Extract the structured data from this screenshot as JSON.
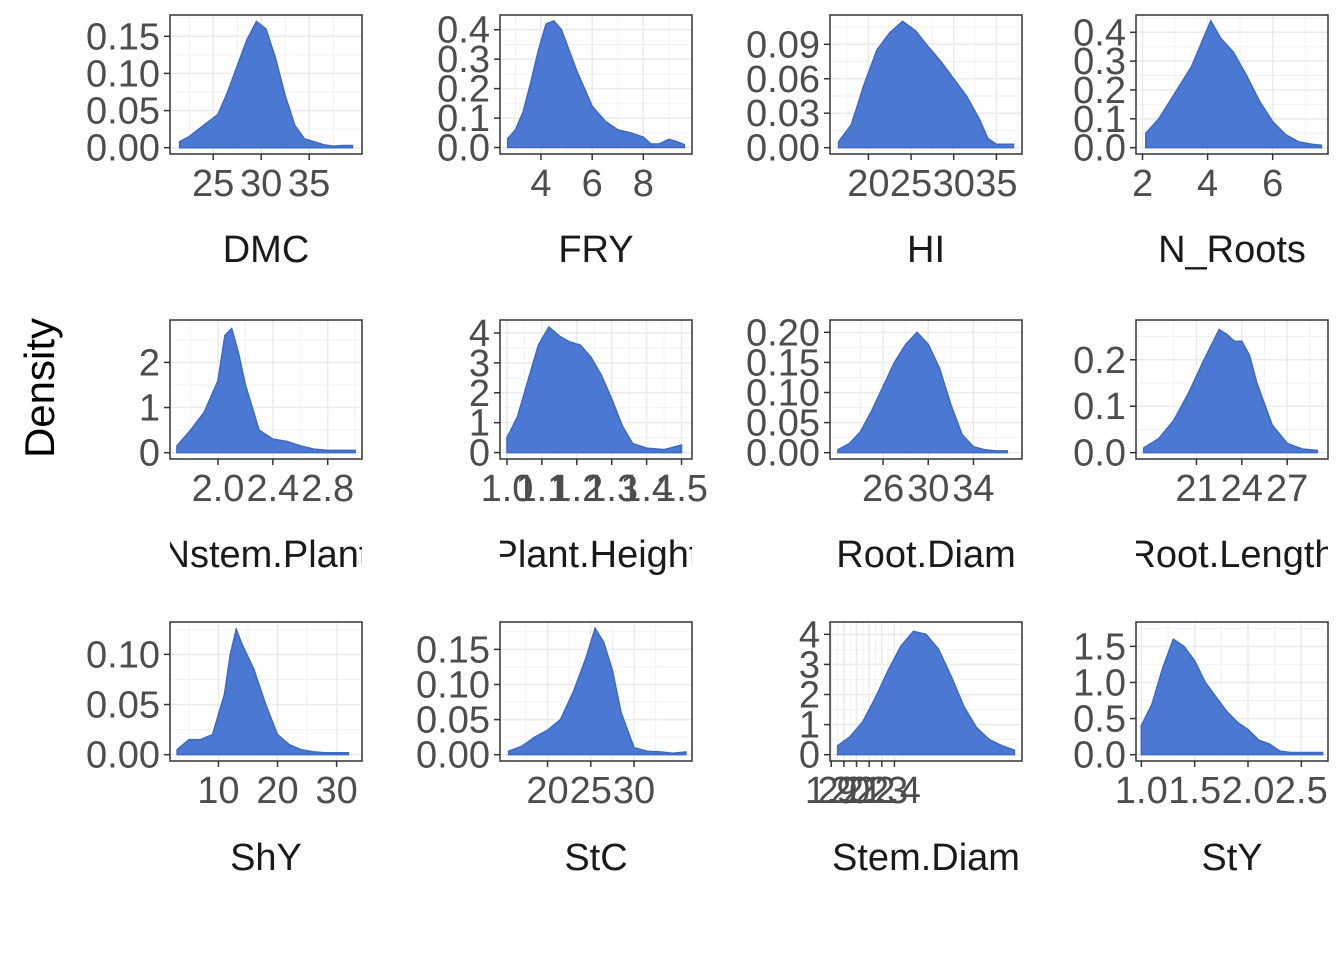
{
  "figure": {
    "ylabel": "Density"
  },
  "chart_data": [
    {
      "type": "area",
      "xlabel": "DMC",
      "xlim": [
        20.5,
        40.5
      ],
      "ylim": [
        -0.0085,
        0.1787
      ],
      "xticks": [
        25,
        30,
        35
      ],
      "xtick_labels": [
        "25",
        "30",
        "35"
      ],
      "yticks": [
        0,
        0.05,
        0.1,
        0.15
      ],
      "ytick_labels": [
        "0.00",
        "0.05",
        "0.10",
        "0.15"
      ],
      "fill_color": "#4a78d2",
      "grid": true,
      "x": [
        21.5,
        22.5,
        23.5,
        24.5,
        25.5,
        26.5,
        27.5,
        28.5,
        29.5,
        30.5,
        31.5,
        32.5,
        33.5,
        34.5,
        35.5,
        36.5,
        37.5,
        38.5,
        39.5
      ],
      "y": [
        0.008,
        0.015,
        0.025,
        0.035,
        0.045,
        0.075,
        0.11,
        0.145,
        0.17,
        0.16,
        0.12,
        0.07,
        0.03,
        0.012,
        0.008,
        0.004,
        0.002,
        0.003,
        0.003
      ]
    },
    {
      "type": "area",
      "xlabel": "FRY",
      "xlim": [
        2.4,
        9.9
      ],
      "ylim": [
        -0.022,
        0.45
      ],
      "xticks": [
        4,
        6,
        8
      ],
      "xtick_labels": [
        "4",
        "6",
        "8"
      ],
      "yticks": [
        0,
        0.1,
        0.2,
        0.3,
        0.4
      ],
      "ytick_labels": [
        "0.0",
        "0.1",
        "0.2",
        "0.3",
        "0.4"
      ],
      "fill_color": "#4a78d2",
      "grid": true,
      "x": [
        2.7,
        3.0,
        3.3,
        3.6,
        3.9,
        4.2,
        4.5,
        4.8,
        5.1,
        5.4,
        5.7,
        6.0,
        6.5,
        7.0,
        7.5,
        8.0,
        8.3,
        8.6,
        9.0,
        9.3,
        9.6
      ],
      "y": [
        0.03,
        0.06,
        0.12,
        0.22,
        0.33,
        0.42,
        0.43,
        0.4,
        0.33,
        0.26,
        0.2,
        0.14,
        0.09,
        0.06,
        0.05,
        0.035,
        0.012,
        0.012,
        0.028,
        0.02,
        0.01
      ]
    },
    {
      "type": "area",
      "xlabel": "HI",
      "xlim": [
        15.5,
        38.0
      ],
      "ylim": [
        -0.0055,
        0.1155
      ],
      "xticks": [
        20,
        25,
        30,
        35
      ],
      "xtick_labels": [
        "20",
        "25",
        "30",
        "35"
      ],
      "yticks": [
        0,
        0.03,
        0.06,
        0.09
      ],
      "ytick_labels": [
        "0.00",
        "0.03",
        "0.06",
        "0.09"
      ],
      "fill_color": "#4a78d2",
      "grid": true,
      "x": [
        16.5,
        18,
        19.5,
        21,
        22.5,
        24,
        25.5,
        27,
        28.5,
        30,
        31.5,
        33,
        34,
        35,
        36,
        37
      ],
      "y": [
        0.005,
        0.02,
        0.055,
        0.085,
        0.1,
        0.11,
        0.102,
        0.088,
        0.075,
        0.06,
        0.045,
        0.025,
        0.008,
        0.003,
        0.003,
        0.003
      ]
    },
    {
      "type": "area",
      "xlabel": "N_Roots",
      "xlim": [
        1.8,
        7.7
      ],
      "ylim": [
        -0.022,
        0.46
      ],
      "xticks": [
        2,
        4,
        6
      ],
      "xtick_labels": [
        "2",
        "4",
        "6"
      ],
      "yticks": [
        0,
        0.1,
        0.2,
        0.3,
        0.4
      ],
      "ytick_labels": [
        "0.0",
        "0.1",
        "0.2",
        "0.3",
        "0.4"
      ],
      "fill_color": "#4a78d2",
      "grid": true,
      "x": [
        2.1,
        2.5,
        3.0,
        3.5,
        3.8,
        4.1,
        4.4,
        4.8,
        5.2,
        5.6,
        6.0,
        6.4,
        6.8,
        7.2,
        7.5
      ],
      "y": [
        0.05,
        0.1,
        0.19,
        0.28,
        0.36,
        0.44,
        0.38,
        0.33,
        0.25,
        0.16,
        0.09,
        0.045,
        0.02,
        0.012,
        0.008
      ]
    },
    {
      "type": "area",
      "xlabel": "Nstem.Plant",
      "xlim": [
        1.65,
        3.05
      ],
      "ylim": [
        -0.14,
        2.94
      ],
      "xticks": [
        2.0,
        2.4,
        2.8
      ],
      "xtick_labels": [
        "2.0",
        "2.4",
        "2.8"
      ],
      "yticks": [
        0,
        1,
        2
      ],
      "ytick_labels": [
        "0",
        "1",
        "2"
      ],
      "fill_color": "#4a78d2",
      "grid": true,
      "x": [
        1.7,
        1.8,
        1.9,
        2.0,
        2.05,
        2.1,
        2.15,
        2.2,
        2.25,
        2.3,
        2.4,
        2.5,
        2.6,
        2.7,
        2.8,
        2.9,
        3.0
      ],
      "y": [
        0.15,
        0.5,
        0.9,
        1.6,
        2.6,
        2.75,
        2.2,
        1.5,
        1.0,
        0.5,
        0.3,
        0.25,
        0.15,
        0.08,
        0.05,
        0.05,
        0.05
      ]
    },
    {
      "type": "area",
      "xlabel": "Plant.Height",
      "xlim": [
        0.98,
        1.53
      ],
      "ylim": [
        -0.215,
        4.435
      ],
      "xticks": [
        1.0,
        1.1,
        1.2,
        1.3,
        1.4,
        1.5
      ],
      "xtick_labels": [
        "1.0",
        "1.1",
        "1.2",
        "1.3",
        "1.4",
        "1.5"
      ],
      "yticks": [
        0,
        1,
        2,
        3,
        4
      ],
      "ytick_labels": [
        "0",
        "1",
        "2",
        "3",
        "4"
      ],
      "fill_color": "#4a78d2",
      "grid": true,
      "x": [
        1.0,
        1.03,
        1.06,
        1.09,
        1.12,
        1.15,
        1.18,
        1.21,
        1.24,
        1.27,
        1.3,
        1.33,
        1.36,
        1.4,
        1.45,
        1.5
      ],
      "y": [
        0.5,
        1.2,
        2.4,
        3.6,
        4.2,
        3.9,
        3.7,
        3.6,
        3.2,
        2.6,
        1.8,
        0.9,
        0.3,
        0.15,
        0.1,
        0.25
      ]
    },
    {
      "type": "area",
      "xlabel": "Root.Diam",
      "xlim": [
        21.3,
        38.3
      ],
      "ylim": [
        -0.0105,
        0.2205
      ],
      "xticks": [
        26,
        30,
        34
      ],
      "xtick_labels": [
        "26",
        "30",
        "34"
      ],
      "yticks": [
        0,
        0.05,
        0.1,
        0.15,
        0.2
      ],
      "ytick_labels": [
        "0.00",
        "0.05",
        "0.10",
        "0.15",
        "0.20"
      ],
      "fill_color": "#4a78d2",
      "grid": true,
      "x": [
        22.0,
        23.0,
        24.0,
        25.0,
        26.0,
        27.0,
        28.0,
        29.0,
        30.0,
        31.0,
        32.0,
        33.0,
        34.0,
        35.0,
        36.0,
        37.0
      ],
      "y": [
        0.005,
        0.015,
        0.035,
        0.07,
        0.11,
        0.15,
        0.18,
        0.2,
        0.18,
        0.14,
        0.08,
        0.03,
        0.01,
        0.005,
        0.003,
        0.003
      ]
    },
    {
      "type": "area",
      "xlabel": "Root.Length",
      "xlim": [
        17.0,
        29.7
      ],
      "ylim": [
        -0.0136,
        0.2856
      ],
      "xticks": [
        21,
        24,
        27
      ],
      "xtick_labels": [
        "21",
        "24",
        "27"
      ],
      "yticks": [
        0,
        0.1,
        0.2
      ],
      "ytick_labels": [
        "0.0",
        "0.1",
        "0.2"
      ],
      "fill_color": "#4a78d2",
      "grid": true,
      "x": [
        17.5,
        18.5,
        19.5,
        20.5,
        21.5,
        22.5,
        23.0,
        23.5,
        24.0,
        24.5,
        25.0,
        26.0,
        27.0,
        28.0,
        29.0
      ],
      "y": [
        0.01,
        0.03,
        0.07,
        0.13,
        0.2,
        0.265,
        0.255,
        0.24,
        0.24,
        0.21,
        0.15,
        0.06,
        0.02,
        0.008,
        0.005
      ]
    },
    {
      "type": "area",
      "xlabel": "ShY",
      "xlim": [
        1.8,
        34.3
      ],
      "ylim": [
        -0.0063,
        0.1323
      ],
      "xticks": [
        10,
        20,
        30
      ],
      "xtick_labels": [
        "10",
        "20",
        "30"
      ],
      "yticks": [
        0,
        0.05,
        0.1
      ],
      "ytick_labels": [
        "0.00",
        "0.05",
        "0.10"
      ],
      "fill_color": "#4a78d2",
      "grid": true,
      "x": [
        3,
        5,
        7,
        9,
        11,
        12,
        13,
        14,
        16,
        18,
        20,
        22,
        24,
        26,
        28,
        30,
        32
      ],
      "y": [
        0.005,
        0.015,
        0.015,
        0.02,
        0.06,
        0.1,
        0.125,
        0.11,
        0.085,
        0.05,
        0.02,
        0.01,
        0.005,
        0.003,
        0.002,
        0.002,
        0.002
      ]
    },
    {
      "type": "area",
      "xlabel": "StC",
      "xlim": [
        14.5,
        36.7
      ],
      "ylim": [
        -0.009,
        0.189
      ],
      "xticks": [
        20,
        25,
        30
      ],
      "xtick_labels": [
        "20",
        "25",
        "30"
      ],
      "yticks": [
        0,
        0.05,
        0.1,
        0.15
      ],
      "ytick_labels": [
        "0.00",
        "0.05",
        "0.10",
        "0.15"
      ],
      "fill_color": "#4a78d2",
      "grid": true,
      "x": [
        15.5,
        17.0,
        18.5,
        20.0,
        21.5,
        23.0,
        24.5,
        25.5,
        26.5,
        27.5,
        28.5,
        30.0,
        31.5,
        33.0,
        34.5,
        36.0
      ],
      "y": [
        0.005,
        0.012,
        0.025,
        0.035,
        0.05,
        0.09,
        0.14,
        0.18,
        0.16,
        0.12,
        0.06,
        0.01,
        0.005,
        0.004,
        0.002,
        0.004
      ]
    },
    {
      "type": "area",
      "xlabel": "Stem.Diam",
      "xlim": [
        1.89,
        3.41
      ],
      "ylim": [
        -0.21,
        4.41
      ],
      "xticks": [
        1.9,
        2.0,
        2.1,
        2.2,
        2.3,
        2.4
      ],
      "xtick_labels": [
        "1.9",
        "2.0",
        "2.1",
        "2.2",
        "2.3",
        "2.4"
      ],
      "yticks": [
        0,
        1,
        2,
        3,
        4
      ],
      "ytick_labels": [
        "0",
        "1",
        "2",
        "3",
        "4"
      ],
      "fill_color": "#4a78d2",
      "grid": true,
      "x": [
        1.95,
        2.05,
        2.15,
        2.25,
        2.35,
        2.45,
        2.55,
        2.65,
        2.75,
        2.85,
        2.95,
        3.05,
        3.15,
        3.25,
        3.35
      ],
      "y": [
        0.3,
        0.6,
        1.1,
        1.9,
        2.8,
        3.6,
        4.1,
        4.0,
        3.5,
        2.6,
        1.6,
        0.9,
        0.5,
        0.3,
        0.15
      ]
    },
    {
      "type": "area",
      "xlabel": "StY",
      "xlim": [
        0.95,
        2.75
      ],
      "ylim": [
        -0.0875,
        1.8375
      ],
      "xticks": [
        1.0,
        1.5,
        2.0,
        2.5
      ],
      "xtick_labels": [
        "1.0",
        "1.5",
        "2.0",
        "2.5"
      ],
      "yticks": [
        0,
        0.5,
        1.0,
        1.5
      ],
      "ytick_labels": [
        "0.0",
        "0.5",
        "1.0",
        "1.5"
      ],
      "fill_color": "#4a78d2",
      "grid": true,
      "x": [
        1.0,
        1.1,
        1.2,
        1.3,
        1.4,
        1.5,
        1.6,
        1.7,
        1.8,
        1.9,
        2.0,
        2.1,
        2.2,
        2.3,
        2.4,
        2.5,
        2.6,
        2.7
      ],
      "y": [
        0.4,
        0.7,
        1.2,
        1.6,
        1.5,
        1.3,
        1.0,
        0.8,
        0.6,
        0.45,
        0.35,
        0.2,
        0.15,
        0.05,
        0.03,
        0.03,
        0.03,
        0.03
      ]
    }
  ]
}
